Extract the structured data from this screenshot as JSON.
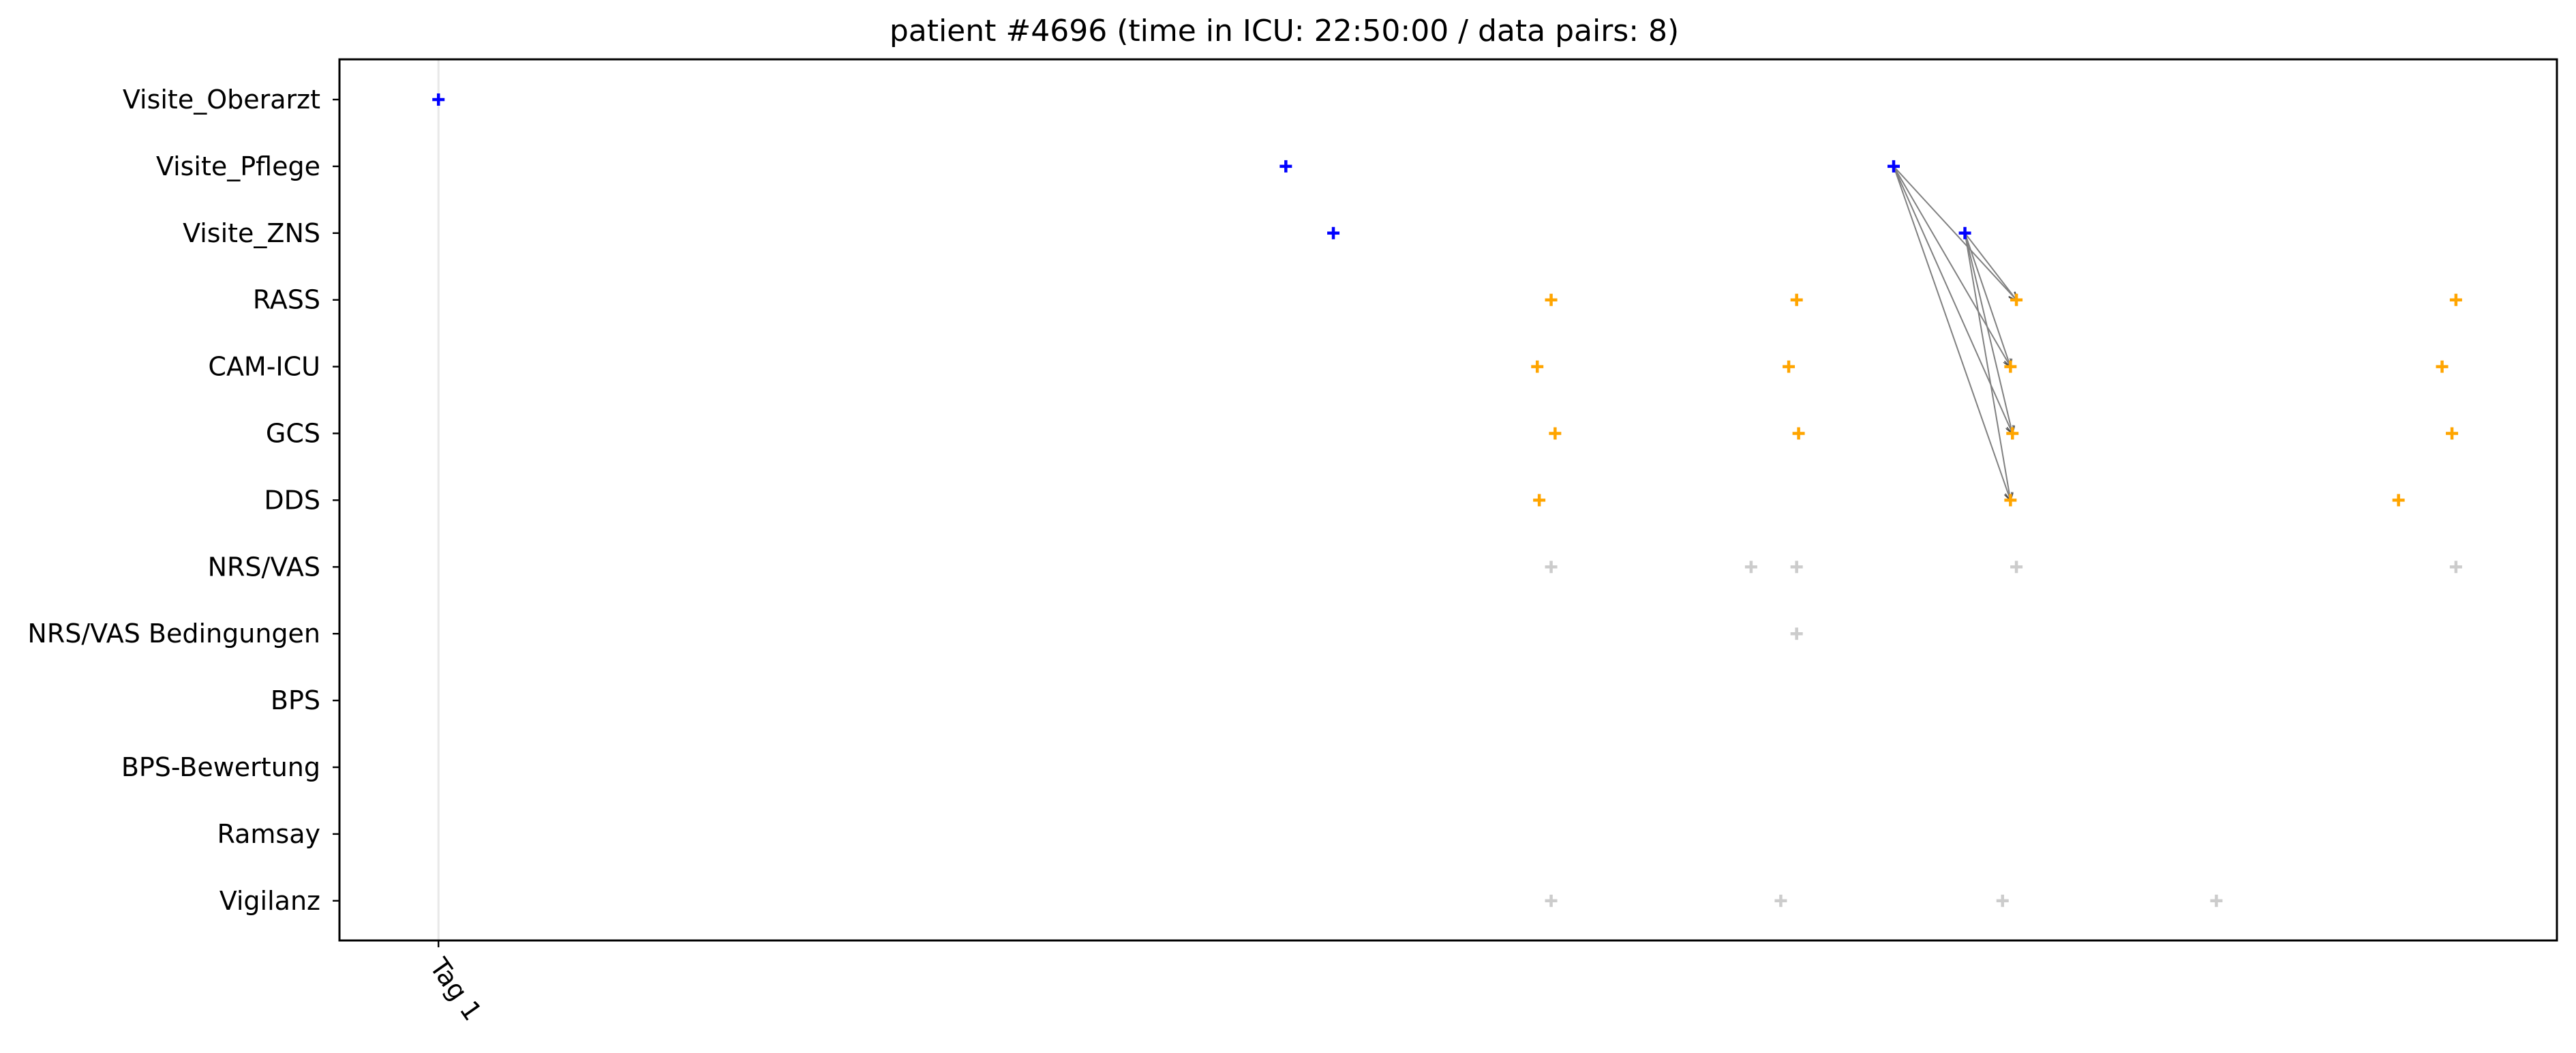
{
  "chart_data": {
    "type": "scatter",
    "title": "patient #4696 (time in ICU: 22:50:00 / data pairs: 8)",
    "xlabel": "",
    "ylabel": "",
    "x_unit": "hours since admission",
    "xlim": [
      -5.0,
      107.0
    ],
    "categories": [
      "Visite_Oberarzt",
      "Visite_Pflege",
      "Visite_ZNS",
      "RASS",
      "CAM-ICU",
      "GCS",
      "DDS",
      "NRS/VAS",
      "NRS/VAS Bedingungen",
      "BPS",
      "BPS-Bewertung",
      "Ramsay",
      "Vigilanz"
    ],
    "x_ticks": [
      {
        "label": "Tag 1",
        "x": 0.0
      }
    ],
    "vertical_line_x": 0.0,
    "grid": false,
    "legend": "none",
    "colors": {
      "visit": "#0000ff",
      "score": "#ffa500",
      "other": "#cccccc",
      "link": "#808080",
      "day_line": "#e8e8e8"
    },
    "series": [
      {
        "group": "visit",
        "points": [
          {
            "category": "Visite_Oberarzt",
            "x": 0.0
          },
          {
            "category": "Visite_Pflege",
            "x": 42.8
          },
          {
            "category": "Visite_Pflege",
            "x": 73.5
          },
          {
            "category": "Visite_ZNS",
            "x": 45.2
          },
          {
            "category": "Visite_ZNS",
            "x": 77.1
          }
        ]
      },
      {
        "group": "score",
        "points": [
          {
            "category": "RASS",
            "x": 56.2
          },
          {
            "category": "RASS",
            "x": 68.6
          },
          {
            "category": "RASS",
            "x": 79.7
          },
          {
            "category": "RASS",
            "x": 101.9
          },
          {
            "category": "CAM-ICU",
            "x": 55.5
          },
          {
            "category": "CAM-ICU",
            "x": 68.2
          },
          {
            "category": "CAM-ICU",
            "x": 79.4
          },
          {
            "category": "CAM-ICU",
            "x": 101.2
          },
          {
            "category": "GCS",
            "x": 56.4
          },
          {
            "category": "GCS",
            "x": 68.7
          },
          {
            "category": "GCS",
            "x": 79.5
          },
          {
            "category": "GCS",
            "x": 101.7
          },
          {
            "category": "DDS",
            "x": 55.6
          },
          {
            "category": "DDS",
            "x": 79.4
          },
          {
            "category": "DDS",
            "x": 99.0
          }
        ]
      },
      {
        "group": "other",
        "points": [
          {
            "category": "NRS/VAS",
            "x": 56.2
          },
          {
            "category": "NRS/VAS",
            "x": 66.3
          },
          {
            "category": "NRS/VAS",
            "x": 68.6
          },
          {
            "category": "NRS/VAS",
            "x": 79.7
          },
          {
            "category": "NRS/VAS",
            "x": 101.9
          },
          {
            "category": "NRS/VAS Bedingungen",
            "x": 68.6
          },
          {
            "category": "Vigilanz",
            "x": 56.2
          },
          {
            "category": "Vigilanz",
            "x": 67.8
          },
          {
            "category": "Vigilanz",
            "x": 79.0
          },
          {
            "category": "Vigilanz",
            "x": 89.8
          }
        ]
      }
    ],
    "links": [
      {
        "from": {
          "category": "Visite_Pflege",
          "x": 73.5
        },
        "to": {
          "category": "RASS",
          "x": 79.7
        }
      },
      {
        "from": {
          "category": "Visite_Pflege",
          "x": 73.5
        },
        "to": {
          "category": "CAM-ICU",
          "x": 79.4
        }
      },
      {
        "from": {
          "category": "Visite_Pflege",
          "x": 73.5
        },
        "to": {
          "category": "GCS",
          "x": 79.5
        }
      },
      {
        "from": {
          "category": "Visite_Pflege",
          "x": 73.5
        },
        "to": {
          "category": "DDS",
          "x": 79.4
        }
      },
      {
        "from": {
          "category": "Visite_ZNS",
          "x": 77.1
        },
        "to": {
          "category": "RASS",
          "x": 79.7
        }
      },
      {
        "from": {
          "category": "Visite_ZNS",
          "x": 77.1
        },
        "to": {
          "category": "CAM-ICU",
          "x": 79.4
        }
      },
      {
        "from": {
          "category": "Visite_ZNS",
          "x": 77.1
        },
        "to": {
          "category": "GCS",
          "x": 79.5
        }
      },
      {
        "from": {
          "category": "Visite_ZNS",
          "x": 77.1
        },
        "to": {
          "category": "DDS",
          "x": 79.4
        }
      }
    ]
  }
}
